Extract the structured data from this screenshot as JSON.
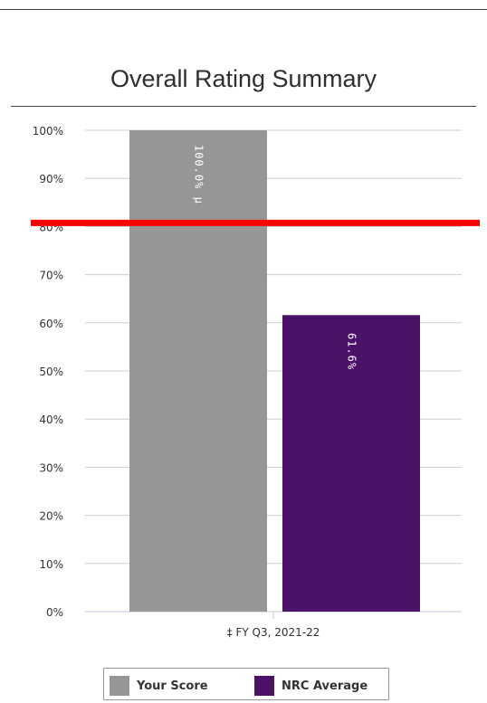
{
  "chart_data": {
    "type": "bar",
    "title": "Overall Rating Summary",
    "categories": [
      "‡ FY Q3, 2021-22"
    ],
    "series": [
      {
        "name": "Your Score",
        "values": [
          100.0
        ],
        "color": "#969696",
        "label": "100.0% µ"
      },
      {
        "name": "NRC Average",
        "values": [
          61.6
        ],
        "color": "#4b1268",
        "label": "61.6%"
      }
    ],
    "ylim": [
      0,
      100
    ],
    "y_ticks": [
      "0%",
      "10%",
      "20%",
      "30%",
      "40%",
      "50%",
      "60%",
      "70%",
      "80%",
      "90%",
      "100%"
    ],
    "reference_line": {
      "value": 80,
      "color": "#ff0000"
    },
    "grid": true,
    "legend_position": "bottom",
    "xlabel": "",
    "ylabel": ""
  }
}
